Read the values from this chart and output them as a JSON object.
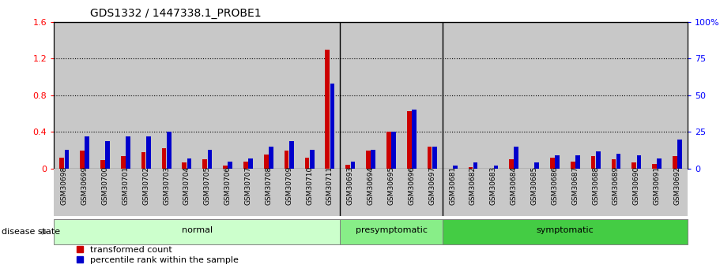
{
  "title": "GDS1332 / 1447338.1_PROBE1",
  "samples": [
    "GSM30698",
    "GSM30699",
    "GSM30700",
    "GSM30701",
    "GSM30702",
    "GSM30703",
    "GSM30704",
    "GSM30705",
    "GSM30706",
    "GSM30707",
    "GSM30708",
    "GSM30709",
    "GSM30710",
    "GSM30711",
    "GSM30693",
    "GSM30694",
    "GSM30695",
    "GSM30696",
    "GSM30697",
    "GSM30681",
    "GSM30682",
    "GSM30683",
    "GSM30684",
    "GSM30685",
    "GSM30686",
    "GSM30687",
    "GSM30688",
    "GSM30689",
    "GSM30690",
    "GSM30691",
    "GSM30692"
  ],
  "red_values": [
    0.12,
    0.2,
    0.09,
    0.14,
    0.18,
    0.22,
    0.07,
    0.1,
    0.03,
    0.08,
    0.15,
    0.2,
    0.12,
    1.3,
    0.04,
    0.2,
    0.4,
    0.63,
    0.24,
    0.0,
    0.02,
    0.0,
    0.1,
    0.0,
    0.12,
    0.08,
    0.14,
    0.1,
    0.07,
    0.05,
    0.14
  ],
  "blue_percentiles": [
    13,
    22,
    19,
    22,
    22,
    25,
    7,
    13,
    5,
    7,
    15,
    19,
    13,
    58,
    5,
    13,
    25,
    40,
    15,
    2,
    4,
    2,
    15,
    4,
    9,
    9,
    12,
    10,
    9,
    7,
    20
  ],
  "groups": [
    {
      "label": "normal",
      "start": 0,
      "end": 13,
      "color": "#ccffcc"
    },
    {
      "label": "presymptomatic",
      "start": 14,
      "end": 18,
      "color": "#88ee88"
    },
    {
      "label": "symptomatic",
      "start": 19,
      "end": 30,
      "color": "#44cc44"
    }
  ],
  "ylim_left": [
    0,
    1.6
  ],
  "ylim_right": [
    0,
    100
  ],
  "yticks_left": [
    0.0,
    0.4,
    0.8,
    1.2,
    1.6
  ],
  "yticks_right": [
    0,
    25,
    50,
    75,
    100
  ],
  "ytick_labels_left": [
    "0",
    "0.4",
    "0.8",
    "1.2",
    "1.6"
  ],
  "ytick_labels_right": [
    "0",
    "25",
    "50",
    "75",
    "100%"
  ],
  "red_color": "#cc0000",
  "blue_color": "#0000cc",
  "bg_color": "#c8c8c8",
  "disease_state_label": "disease state"
}
